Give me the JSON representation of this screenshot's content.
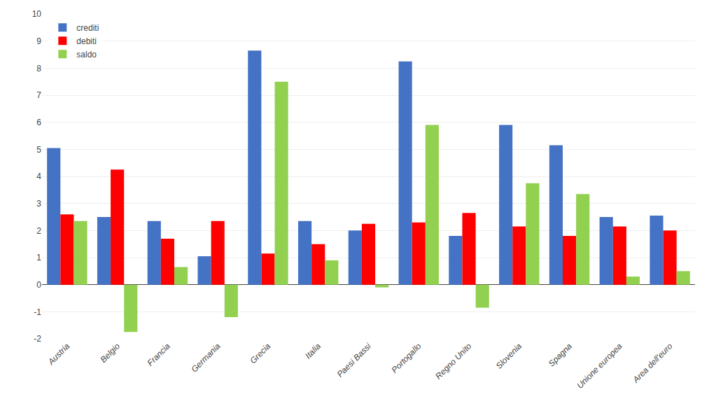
{
  "chart_data": {
    "type": "bar",
    "categories": [
      "Austria",
      "Belgio",
      "Francia",
      "Germania",
      "Grecia",
      "Italia",
      "Paesi Bassi",
      "Portogallo",
      "Regno Unito",
      "Slovenia",
      "Spagna",
      "Unione europea",
      "Area dell'euro"
    ],
    "series": [
      {
        "name": "crediti",
        "color": "#4472C4",
        "values": [
          5.05,
          2.5,
          2.35,
          1.05,
          8.65,
          2.35,
          2.0,
          8.25,
          1.8,
          5.9,
          5.15,
          2.5,
          2.55
        ]
      },
      {
        "name": "debiti",
        "color": "#FF0000",
        "values": [
          2.6,
          4.25,
          1.7,
          2.35,
          1.15,
          1.5,
          2.25,
          2.3,
          2.65,
          2.15,
          1.8,
          2.15,
          2.0
        ]
      },
      {
        "name": "saldo",
        "color": "#92D050",
        "values": [
          2.35,
          -1.75,
          0.65,
          -1.2,
          7.5,
          0.9,
          -0.1,
          5.9,
          -0.85,
          3.75,
          3.35,
          0.3,
          0.5
        ]
      }
    ],
    "ylim": [
      -2,
      10
    ],
    "yticks": [
      -2,
      -1,
      0,
      1,
      2,
      3,
      4,
      5,
      6,
      7,
      8,
      9,
      10
    ],
    "grid": true,
    "legend": "upper left"
  }
}
